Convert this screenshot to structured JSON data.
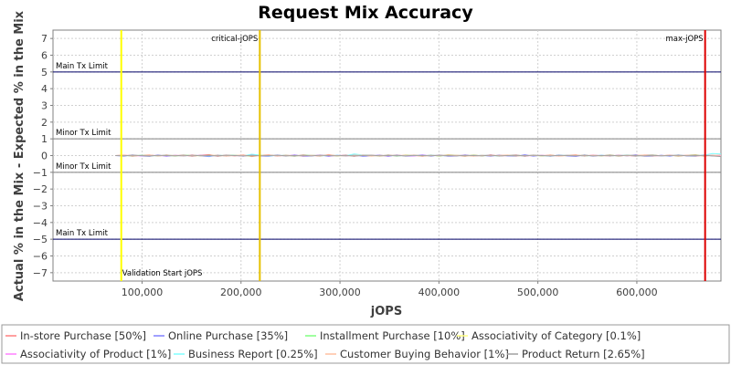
{
  "chart_data": {
    "type": "line",
    "title": "Request Mix Accuracy",
    "xlabel": "jOPS",
    "ylabel": "Actual % in the Mix - Expected % in the Mix",
    "xlim": [
      10000,
      685000
    ],
    "ylim": [
      -7.5,
      7.5
    ],
    "x_ticks": [
      100000,
      200000,
      300000,
      400000,
      500000,
      600000
    ],
    "x_tick_labels": [
      "100,000",
      "200,000",
      "300,000",
      "400,000",
      "500,000",
      "600,000"
    ],
    "y_ticks": [
      7,
      6,
      5,
      4,
      3,
      2,
      1,
      0,
      -1,
      -2,
      -3,
      -4,
      -5,
      -6,
      -7
    ],
    "y_tick_labels": [
      "7",
      "6",
      "5",
      "4",
      "3",
      "2",
      "1",
      "0",
      "−1",
      "−2",
      "−3",
      "−4",
      "−5",
      "−6",
      "−7"
    ],
    "grid": true,
    "legend_position": "bottom",
    "horizontal_lines": [
      {
        "y": 5,
        "label": "Main Tx Limit",
        "color": "#000066"
      },
      {
        "y": 1,
        "label": "Minor Tx Limit",
        "color": "#808080"
      },
      {
        "y": -1,
        "label": "Minor Tx Limit",
        "color": "#808080"
      },
      {
        "y": -5,
        "label": "Main Tx Limit",
        "color": "#000066"
      }
    ],
    "vertical_lines": [
      {
        "x": 79000,
        "label": "Validation Start jOPS",
        "color": "#ffff00"
      },
      {
        "x": 219000,
        "label": "critical-jOPS",
        "color": "#e6c000"
      },
      {
        "x": 669000,
        "label": "max-jOPS",
        "color": "#dd0000"
      }
    ],
    "series_x_range": [
      73000,
      685000
    ],
    "series": [
      {
        "name": "In-store Purchase [50%]",
        "color": "#ff8080",
        "values": [
          0,
          0.03,
          -0.05,
          0.02,
          0.04,
          -0.03,
          0.05,
          -0.02,
          0.03,
          -0.04,
          0.02,
          0.06,
          -0.05,
          0.03,
          -0.02,
          0.04,
          -0.06,
          0.02,
          0.05,
          -0.03,
          0.03,
          -0.05,
          0.04,
          0.02,
          -0.04,
          0.06,
          -0.02,
          0.03,
          -0.05,
          0.04,
          0.02,
          -0.03,
          0.05,
          -0.04,
          0.03,
          0.02,
          -0.05,
          0.04,
          -0.03,
          0.05,
          0.02,
          -0.04,
          0.03,
          -0.02,
          0.05,
          -0.03,
          0.02,
          0.04,
          -0.05,
          0.03,
          -0.02,
          0.04,
          -0.03,
          0.02,
          0.05,
          -0.04,
          0.03,
          -0.02,
          0.04,
          -0.03,
          0.02,
          -0.05,
          0.03,
          0.04,
          -0.02,
          0.03,
          -0.04,
          0.02,
          0.05,
          -0.03,
          0.02,
          -0.04
        ]
      },
      {
        "name": "Online Purchase [35%]",
        "color": "#8080ff",
        "values": [
          0,
          -0.03,
          0.04,
          -0.02,
          -0.05,
          0.03,
          -0.04,
          0.02,
          -0.03,
          0.05,
          -0.02,
          -0.06,
          0.04,
          -0.03,
          0.02,
          -0.04,
          0.05,
          -0.02,
          -0.04,
          0.03,
          -0.03,
          0.04,
          -0.05,
          -0.02,
          0.03,
          -0.05,
          0.02,
          -0.03,
          0.04,
          -0.04,
          -0.02,
          0.03,
          -0.05,
          0.04,
          -0.03,
          -0.02,
          0.04,
          -0.03,
          0.03,
          -0.05,
          -0.02,
          0.04,
          -0.03,
          0.02,
          -0.04,
          0.03,
          -0.02,
          -0.04,
          0.05,
          -0.03,
          0.02,
          -0.04,
          0.03,
          -0.02,
          -0.05,
          0.04,
          -0.03,
          0.02,
          -0.04,
          0.03,
          -0.02,
          0.05,
          -0.03,
          -0.04,
          0.02,
          -0.03,
          0.04,
          -0.02,
          -0.05,
          0.03,
          -0.02,
          0.04
        ]
      },
      {
        "name": "Installment Purchase [10%]",
        "color": "#80ff80",
        "values": [
          0,
          0.01,
          -0.02,
          0.01,
          0.02,
          -0.01,
          0.01,
          -0.02,
          0.01,
          0.02,
          -0.01,
          0.01,
          -0.02,
          0.01,
          0.02,
          -0.01,
          -0.02,
          0.01,
          0.02,
          -0.01,
          0.01,
          -0.02,
          0.01,
          0.02,
          -0.01,
          0.02,
          -0.01,
          0.01,
          -0.02,
          0.01,
          0.02,
          -0.01,
          0.01,
          -0.02,
          0.01,
          0.02,
          -0.01,
          0.01,
          -0.02,
          0.02,
          0.01,
          -0.01,
          0.02,
          -0.01,
          0.01,
          -0.02,
          0.01,
          0.02,
          -0.01,
          0.01,
          -0.02,
          0.01,
          -0.01,
          0.02,
          0.01,
          -0.02,
          0.01,
          -0.01,
          0.02,
          -0.01,
          0.01,
          -0.02,
          0.01,
          0.02,
          -0.01,
          0.01,
          -0.02,
          0.01,
          0.02,
          -0.01,
          0.01,
          -0.02
        ]
      },
      {
        "name": "Associativity of Category [0.1%]",
        "color": "#ffff80",
        "values": [
          0,
          0,
          0.01,
          0,
          -0.01,
          0,
          0,
          0.01,
          0,
          -0.01,
          0,
          0,
          0.01,
          0,
          0,
          -0.01,
          0,
          0.01,
          0,
          0,
          -0.01,
          0,
          0,
          0.01,
          0,
          0,
          -0.01,
          0,
          0.01,
          0,
          0,
          -0.01,
          0,
          0,
          0.01,
          0,
          -0.01,
          0,
          0,
          0.01,
          0,
          0,
          -0.01,
          0,
          0.01,
          0,
          0,
          -0.01,
          0,
          0,
          0.01,
          0,
          -0.01,
          0,
          0,
          0.01,
          0,
          0,
          -0.01,
          0,
          0.01,
          0,
          0,
          -0.01,
          0,
          0,
          0.01,
          0,
          -0.01,
          0,
          0,
          0.01
        ]
      },
      {
        "name": "Associativity of Product [1%]",
        "color": "#ff80ff",
        "values": [
          0,
          0.01,
          0,
          -0.01,
          0.01,
          0,
          -0.01,
          0.01,
          0,
          -0.01,
          0.02,
          0,
          -0.01,
          0.01,
          0,
          -0.02,
          0.01,
          0,
          0.01,
          -0.01,
          0,
          0.01,
          -0.01,
          0,
          0.02,
          -0.01,
          0,
          0.01,
          -0.01,
          0,
          0.01,
          0,
          -0.01,
          0.01,
          0,
          -0.02,
          0.01,
          0,
          0.01,
          -0.01,
          0,
          0.01,
          -0.01,
          0,
          0.02,
          -0.01,
          0,
          0.01,
          -0.01,
          0,
          0.01,
          0,
          -0.01,
          0.01,
          0,
          -0.01,
          0.02,
          0,
          -0.01,
          0.01,
          0,
          -0.01,
          0.01,
          0,
          -0.02,
          0.01,
          0,
          0.01,
          -0.01,
          0,
          0.01,
          -0.01
        ]
      },
      {
        "name": "Business Report [0.25%]",
        "color": "#80ffff",
        "values": [
          0,
          0,
          -0.01,
          0.01,
          0,
          -0.01,
          0.02,
          0,
          -0.01,
          0.01,
          0,
          -0.02,
          0.01,
          0,
          0.01,
          -0.01,
          0.08,
          0.02,
          -0.01,
          0,
          0.01,
          -0.01,
          0,
          0.02,
          -0.01,
          0,
          0.01,
          -0.01,
          0.09,
          0.03,
          -0.01,
          0,
          0.01,
          -0.01,
          0,
          0.01,
          -0.01,
          0.02,
          0,
          -0.01,
          0.01,
          0,
          -0.01,
          0.02,
          0,
          -0.01,
          0.01,
          0,
          -0.01,
          0.01,
          0,
          -0.02,
          0.01,
          0,
          0.01,
          -0.01,
          0,
          0.01,
          -0.01,
          0,
          0.02,
          -0.01,
          0,
          0.01,
          -0.01,
          0,
          0.01,
          0,
          -0.01,
          0.02,
          0.12,
          0.1
        ]
      },
      {
        "name": "Customer Buying Behavior [1%]",
        "color": "#ffc0a0",
        "values": [
          0,
          0.02,
          -0.01,
          0,
          0.03,
          -0.02,
          0.01,
          0,
          -0.02,
          0.03,
          -0.01,
          0,
          0.02,
          -0.03,
          0.01,
          0.02,
          -0.01,
          0,
          0.03,
          -0.02,
          0.01,
          0,
          -0.02,
          0.02,
          -0.01,
          0.03,
          0,
          -0.02,
          0.01,
          0.02,
          -0.03,
          0.01,
          0,
          0.02,
          -0.01,
          0.03,
          -0.02,
          0,
          0.01,
          -0.01,
          0.02,
          0,
          -0.03,
          0.02,
          -0.01,
          0.01,
          0.03,
          -0.02,
          0,
          0.01,
          -0.01,
          0.02,
          -0.02,
          0,
          0.03,
          -0.01,
          0.01,
          0,
          -0.02,
          0.02,
          -0.01,
          0.01,
          0.03,
          -0.02,
          0,
          0.01,
          -0.01,
          0.02,
          -0.02,
          0,
          0.01,
          0.02
        ]
      },
      {
        "name": "Product Return [2.65%]",
        "color": "#a0a0a0",
        "values": [
          0,
          -0.01,
          0.02,
          0,
          -0.02,
          0.01,
          0,
          -0.01,
          0.02,
          -0.02,
          0.01,
          0,
          -0.01,
          0.02,
          0,
          -0.02,
          0.01,
          -0.01,
          0,
          0.02,
          -0.01,
          0,
          0.01,
          -0.02,
          0.02,
          0,
          -0.01,
          0.01,
          -0.02,
          0,
          0.02,
          -0.01,
          0,
          0.01,
          -0.02,
          0.01,
          0,
          -0.01,
          0.02,
          0,
          -0.02,
          0.01,
          0,
          -0.01,
          0.02,
          -0.02,
          0,
          0.01,
          -0.01,
          0.02,
          0,
          -0.02,
          0.01,
          0,
          -0.01,
          0.02,
          -0.02,
          0,
          0.01,
          -0.01,
          0.02,
          0,
          -0.02,
          0.01,
          -0.01,
          0,
          0.02,
          -0.01,
          0,
          0.01,
          -0.02,
          -0.06
        ]
      }
    ]
  }
}
